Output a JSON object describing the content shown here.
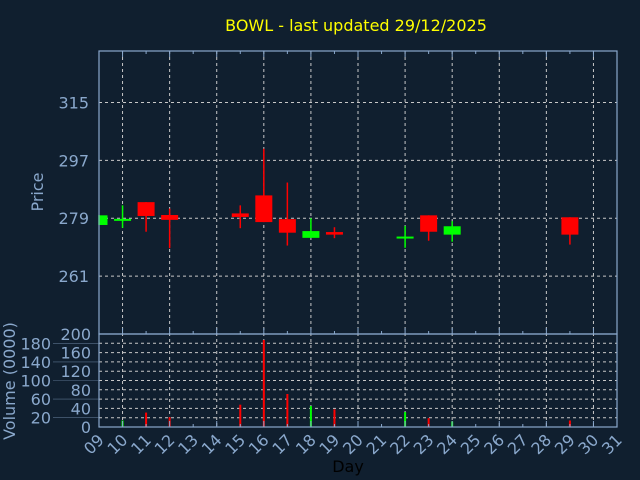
{
  "chart_data": [
    {
      "type": "candlestick",
      "title": "BOWL - last updated 29/12/2025",
      "xlabel": "Day",
      "ylabel": "Price",
      "ylim": [
        243,
        331
      ],
      "yticks": [
        261,
        279,
        297,
        315
      ],
      "xticks": [
        "09",
        "10",
        "11",
        "12",
        "13",
        "14",
        "15",
        "16",
        "17",
        "18",
        "19",
        "20",
        "21",
        "22",
        "23",
        "24",
        "25",
        "26",
        "27",
        "28",
        "29",
        "30",
        "31"
      ],
      "grid": true,
      "colors": {
        "up": "#00ff00",
        "down": "#ff0000",
        "title": "#ffff00",
        "axis": "#8aa8cc",
        "grid": "#c8c8c8",
        "background": "#101f2f"
      },
      "candles": [
        {
          "day": 9,
          "open": 276.9,
          "high": 280.0,
          "low": 276.9,
          "close": 279.9
        },
        {
          "day": 10,
          "open": 278.6,
          "high": 283.0,
          "low": 276.0,
          "close": 278.8
        },
        {
          "day": 11,
          "open": 284.0,
          "high": 284.0,
          "low": 274.8,
          "close": 279.7
        },
        {
          "day": 12,
          "open": 280.0,
          "high": 282.0,
          "low": 269.7,
          "close": 278.5
        },
        {
          "day": 15,
          "open": 280.5,
          "high": 283.0,
          "low": 275.9,
          "close": 279.4
        },
        {
          "day": 16,
          "open": 286.1,
          "high": 300.6,
          "low": 277.8,
          "close": 277.8
        },
        {
          "day": 17,
          "open": 278.7,
          "high": 290.1,
          "low": 270.5,
          "close": 274.5
        },
        {
          "day": 18,
          "open": 272.9,
          "high": 279.0,
          "low": 272.9,
          "close": 275.0
        },
        {
          "day": 19,
          "open": 274.7,
          "high": 276.2,
          "low": 272.8,
          "close": 273.9
        },
        {
          "day": 22,
          "open": 273.1,
          "high": 276.6,
          "low": 269.8,
          "close": 273.3
        },
        {
          "day": 23,
          "open": 279.9,
          "high": 279.9,
          "low": 272.0,
          "close": 274.8
        },
        {
          "day": 24,
          "open": 273.9,
          "high": 278.1,
          "low": 271.7,
          "close": 276.5
        },
        {
          "day": 29,
          "open": 279.3,
          "high": 279.3,
          "low": 270.8,
          "close": 273.9
        }
      ]
    },
    {
      "type": "bar",
      "ylabel": "Volume (0000)",
      "ylim": [
        0,
        200
      ],
      "yticks": [
        0,
        20,
        40,
        60,
        80,
        100,
        120,
        140,
        160,
        180,
        200
      ],
      "bars": [
        {
          "day": 10,
          "value": 14,
          "direction": "up"
        },
        {
          "day": 11,
          "value": 31,
          "direction": "down"
        },
        {
          "day": 12,
          "value": 21,
          "direction": "down"
        },
        {
          "day": 15,
          "value": 48,
          "direction": "down"
        },
        {
          "day": 16,
          "value": 187,
          "direction": "down"
        },
        {
          "day": 17,
          "value": 71,
          "direction": "down"
        },
        {
          "day": 18,
          "value": 45,
          "direction": "up"
        },
        {
          "day": 19,
          "value": 38,
          "direction": "down"
        },
        {
          "day": 22,
          "value": 32,
          "direction": "up"
        },
        {
          "day": 23,
          "value": 19,
          "direction": "down"
        },
        {
          "day": 24,
          "value": 12,
          "direction": "up"
        },
        {
          "day": 29,
          "value": 14,
          "direction": "down"
        }
      ]
    }
  ]
}
